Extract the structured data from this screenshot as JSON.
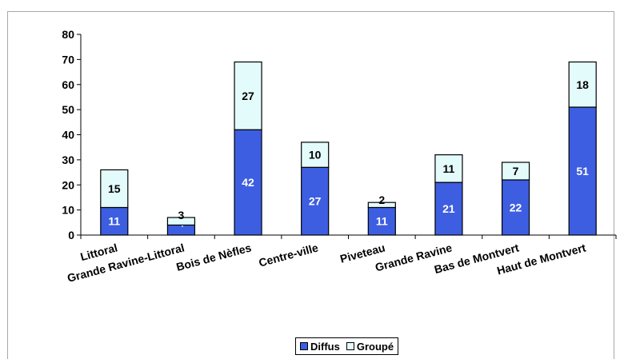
{
  "chart_data": {
    "type": "bar",
    "stacked": true,
    "categories": [
      "Littoral",
      "Grande Ravine-Littoral",
      "Bois de Nèfles",
      "Centre-ville",
      "Piveteau",
      "Grande Ravine",
      "Bas de Montvert",
      "Haut de Montvert"
    ],
    "series": [
      {
        "name": "Diffus",
        "values": [
          11,
          4,
          42,
          27,
          11,
          21,
          22,
          51
        ],
        "color": "#3d5ee0",
        "label_color": "#ffffff"
      },
      {
        "name": "Groupé",
        "values": [
          15,
          3,
          27,
          10,
          2,
          11,
          7,
          18
        ],
        "color": "#e4fbfb",
        "label_color": "#000000"
      }
    ],
    "ylim": [
      0,
      80
    ],
    "yticks": [
      0,
      10,
      20,
      30,
      40,
      50,
      60,
      70,
      80
    ],
    "grid": false,
    "legend": "bottom",
    "title": "",
    "xlabel": "",
    "ylabel": ""
  }
}
